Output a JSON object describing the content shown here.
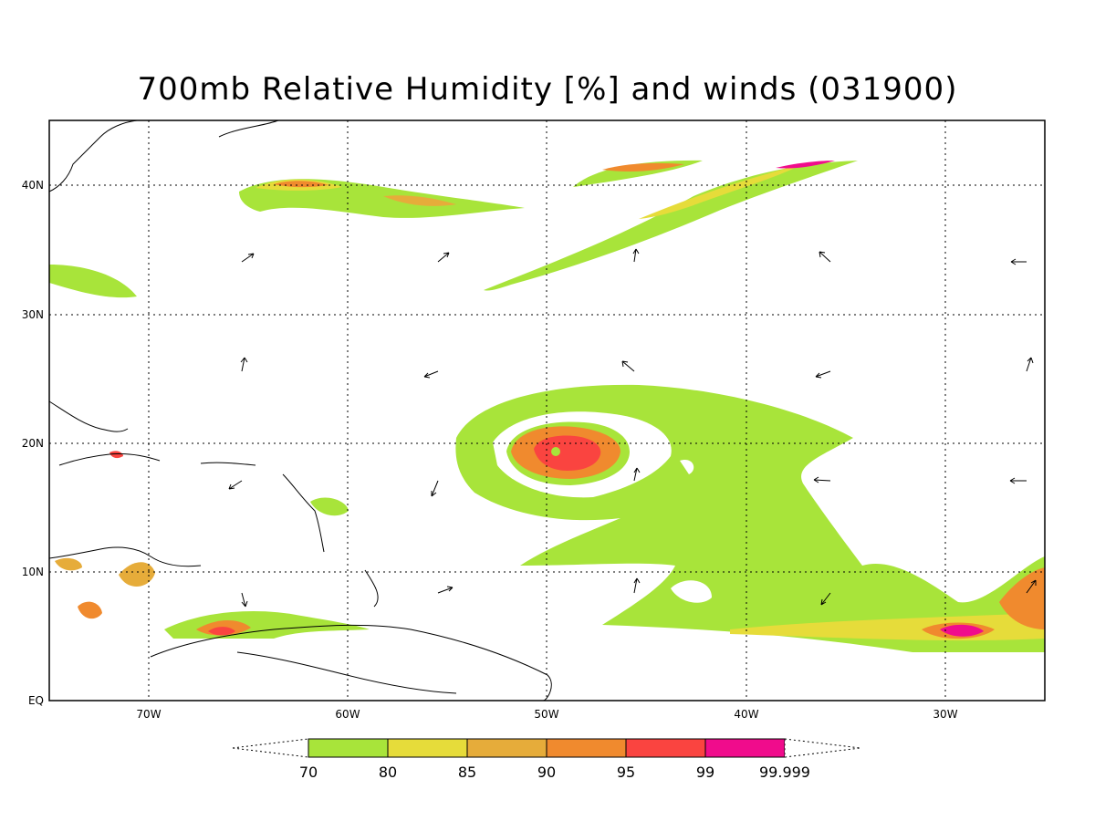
{
  "title": "700mb Relative Humidity [%] and winds (031900)",
  "axes": {
    "x_ticks": [
      "70W",
      "60W",
      "50W",
      "40W",
      "30W"
    ],
    "y_ticks": [
      "EQ",
      "10N",
      "20N",
      "30N",
      "40N"
    ]
  },
  "colorbar": {
    "labels": [
      "70",
      "80",
      "85",
      "90",
      "95",
      "99",
      "99.999"
    ],
    "colors": [
      "#a8e43a",
      "#e6dc3a",
      "#e6ac3a",
      "#f08a2e",
      "#fa4440",
      "#f00c8c"
    ]
  },
  "colors": {
    "land_outline": "#000000",
    "gridline": "#000000",
    "humidity_70": "#a8e43a",
    "humidity_80": "#e6dc3a",
    "humidity_85": "#e6ac3a",
    "humidity_90": "#f08a2e",
    "humidity_95": "#fa4440",
    "humidity_99": "#f00c8c"
  }
}
